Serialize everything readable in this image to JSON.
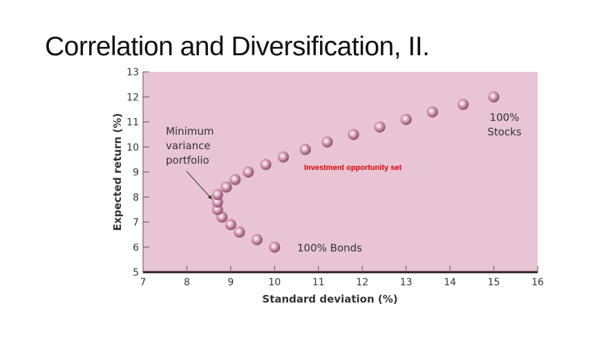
{
  "slide": {
    "title": "Correlation and Diversification, II."
  },
  "chart_data": {
    "type": "scatter",
    "title": "Correlation and Diversification, II.",
    "xlabel": "Standard deviation (%)",
    "ylabel": "Expected return (%)",
    "xlim": [
      7,
      16
    ],
    "ylim": [
      5,
      13
    ],
    "xticks": [
      7,
      8,
      9,
      10,
      11,
      12,
      13,
      14,
      15,
      16
    ],
    "yticks": [
      5,
      6,
      7,
      8,
      9,
      10,
      11,
      12,
      13
    ],
    "grid": false,
    "background": "#e8c4d4",
    "marker_color": "#b07090",
    "series": [
      {
        "name": "Investment opportunity set",
        "points": [
          {
            "x": 10.0,
            "y": 6.0
          },
          {
            "x": 9.6,
            "y": 6.3
          },
          {
            "x": 9.2,
            "y": 6.6
          },
          {
            "x": 9.0,
            "y": 6.9
          },
          {
            "x": 8.8,
            "y": 7.2
          },
          {
            "x": 8.7,
            "y": 7.5
          },
          {
            "x": 8.7,
            "y": 7.8
          },
          {
            "x": 8.7,
            "y": 8.1
          },
          {
            "x": 8.9,
            "y": 8.4
          },
          {
            "x": 9.1,
            "y": 8.7
          },
          {
            "x": 9.4,
            "y": 9.0
          },
          {
            "x": 9.8,
            "y": 9.3
          },
          {
            "x": 10.2,
            "y": 9.6
          },
          {
            "x": 10.7,
            "y": 9.9
          },
          {
            "x": 11.2,
            "y": 10.2
          },
          {
            "x": 11.8,
            "y": 10.5
          },
          {
            "x": 12.4,
            "y": 10.8
          },
          {
            "x": 13.0,
            "y": 11.1
          },
          {
            "x": 13.6,
            "y": 11.4
          },
          {
            "x": 14.3,
            "y": 11.7
          },
          {
            "x": 15.0,
            "y": 12.0
          }
        ]
      }
    ],
    "annotations": [
      {
        "text": "Minimum variance portfolio",
        "lines": [
          "Minimum",
          "variance",
          "portfolio"
        ],
        "arrow_to": {
          "x": 8.7,
          "y": 7.8
        }
      },
      {
        "text": "Investment opportunity set",
        "color": "#e00000"
      },
      {
        "text": "100% Bonds",
        "near": {
          "x": 10.0,
          "y": 6.0
        }
      },
      {
        "text": "100% Stocks",
        "lines": [
          "100%",
          "Stocks"
        ],
        "near": {
          "x": 15.0,
          "y": 12.0
        }
      }
    ]
  }
}
